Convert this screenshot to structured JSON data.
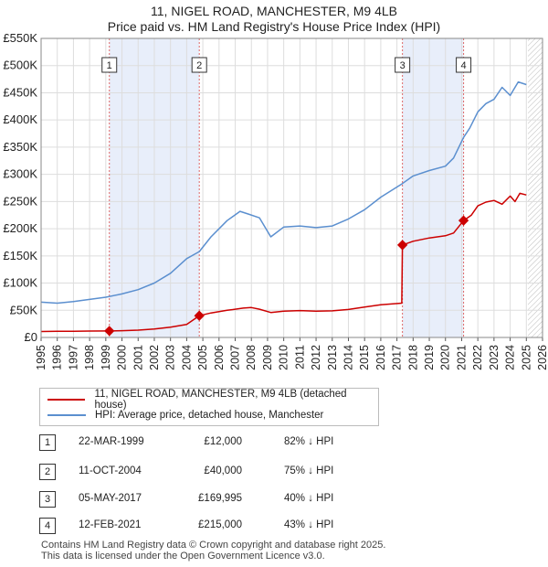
{
  "title": "11, NIGEL ROAD, MANCHESTER, M9 4LB",
  "subtitle": "Price paid vs. HM Land Registry's House Price Index (HPI)",
  "chart_data": {
    "type": "line",
    "x_range": [
      1995,
      2026
    ],
    "ylim": [
      0,
      550000
    ],
    "y_ticks": [
      {
        "value": 0,
        "label": "£0"
      },
      {
        "value": 50000,
        "label": "£50K"
      },
      {
        "value": 100000,
        "label": "£100K"
      },
      {
        "value": 150000,
        "label": "£150K"
      },
      {
        "value": 200000,
        "label": "£200K"
      },
      {
        "value": 250000,
        "label": "£250K"
      },
      {
        "value": 300000,
        "label": "£300K"
      },
      {
        "value": 350000,
        "label": "£350K"
      },
      {
        "value": 400000,
        "label": "£400K"
      },
      {
        "value": 450000,
        "label": "£450K"
      },
      {
        "value": 500000,
        "label": "£500K"
      },
      {
        "value": 550000,
        "label": "£550K"
      }
    ],
    "x_ticks": [
      "1995",
      "1996",
      "1997",
      "1998",
      "1999",
      "2000",
      "2001",
      "2002",
      "2003",
      "2004",
      "2005",
      "2006",
      "2007",
      "2008",
      "2009",
      "2010",
      "2011",
      "2012",
      "2013",
      "2014",
      "2015",
      "2016",
      "2017",
      "2018",
      "2019",
      "2020",
      "2021",
      "2022",
      "2023",
      "2024",
      "2025",
      "2026"
    ],
    "grid": true,
    "forecast_from": 2025.1,
    "shaded_periods": [
      [
        1999.22,
        2004.78
      ],
      [
        2017.34,
        2021.12
      ]
    ],
    "sale_markers": [
      {
        "label": "1",
        "x": 1999.22,
        "y": 12000
      },
      {
        "label": "2",
        "x": 2004.78,
        "y": 40000
      },
      {
        "label": "3",
        "x": 2017.34,
        "y": 169995
      },
      {
        "label": "4",
        "x": 2021.12,
        "y": 215000
      }
    ],
    "series": [
      {
        "name": "11, NIGEL ROAD, MANCHESTER, M9 4LB (detached house)",
        "color": "#cc0000",
        "points": [
          [
            1995.0,
            11000
          ],
          [
            1996.0,
            11200
          ],
          [
            1997.0,
            11500
          ],
          [
            1998.0,
            11800
          ],
          [
            1999.22,
            12000
          ],
          [
            2000.0,
            12500
          ],
          [
            2001.0,
            13500
          ],
          [
            2002.0,
            15500
          ],
          [
            2003.0,
            19000
          ],
          [
            2004.0,
            24000
          ],
          [
            2004.78,
            40000
          ],
          [
            2005.5,
            45000
          ],
          [
            2006.5,
            50000
          ],
          [
            2007.5,
            54000
          ],
          [
            2008.0,
            55000
          ],
          [
            2008.5,
            52000
          ],
          [
            2009.2,
            46000
          ],
          [
            2010.0,
            48500
          ],
          [
            2011.0,
            49500
          ],
          [
            2012.0,
            48500
          ],
          [
            2013.0,
            49000
          ],
          [
            2014.0,
            51500
          ],
          [
            2015.0,
            56000
          ],
          [
            2016.0,
            60000
          ],
          [
            2017.3,
            63000
          ],
          [
            2017.34,
            169995
          ],
          [
            2018.0,
            177000
          ],
          [
            2019.0,
            183000
          ],
          [
            2020.0,
            187000
          ],
          [
            2020.5,
            192000
          ],
          [
            2021.12,
            215000
          ],
          [
            2021.6,
            225000
          ],
          [
            2022.0,
            242000
          ],
          [
            2022.5,
            249000
          ],
          [
            2023.0,
            252000
          ],
          [
            2023.5,
            245000
          ],
          [
            2024.0,
            260000
          ],
          [
            2024.3,
            250000
          ],
          [
            2024.6,
            265000
          ],
          [
            2025.0,
            262000
          ]
        ]
      },
      {
        "name": "HPI: Average price, detached house, Manchester",
        "color": "#5b8fcf",
        "points": [
          [
            1995.0,
            65000
          ],
          [
            1996.0,
            63000
          ],
          [
            1997.0,
            66000
          ],
          [
            1998.0,
            70000
          ],
          [
            1999.0,
            74000
          ],
          [
            2000.0,
            80000
          ],
          [
            2001.0,
            88000
          ],
          [
            2002.0,
            100000
          ],
          [
            2003.0,
            118000
          ],
          [
            2004.0,
            145000
          ],
          [
            2004.78,
            158000
          ],
          [
            2005.5,
            185000
          ],
          [
            2006.5,
            215000
          ],
          [
            2007.3,
            232000
          ],
          [
            2007.8,
            227000
          ],
          [
            2008.5,
            220000
          ],
          [
            2009.2,
            185000
          ],
          [
            2010.0,
            203000
          ],
          [
            2011.0,
            205000
          ],
          [
            2012.0,
            202000
          ],
          [
            2013.0,
            205000
          ],
          [
            2014.0,
            218000
          ],
          [
            2015.0,
            235000
          ],
          [
            2016.0,
            258000
          ],
          [
            2017.34,
            283000
          ],
          [
            2018.0,
            297000
          ],
          [
            2019.0,
            307000
          ],
          [
            2020.0,
            315000
          ],
          [
            2020.5,
            330000
          ],
          [
            2021.12,
            368000
          ],
          [
            2021.5,
            385000
          ],
          [
            2022.0,
            415000
          ],
          [
            2022.5,
            430000
          ],
          [
            2023.0,
            438000
          ],
          [
            2023.5,
            460000
          ],
          [
            2024.0,
            445000
          ],
          [
            2024.5,
            470000
          ],
          [
            2025.0,
            465000
          ]
        ]
      }
    ]
  },
  "legend": [
    {
      "label": "11, NIGEL ROAD, MANCHESTER, M9 4LB (detached house)",
      "color": "#cc0000"
    },
    {
      "label": "HPI: Average price, detached house, Manchester",
      "color": "#5b8fcf"
    }
  ],
  "transactions": [
    {
      "num": "1",
      "date": "22-MAR-1999",
      "price": "£12,000",
      "hpi": "82% ↓ HPI"
    },
    {
      "num": "2",
      "date": "11-OCT-2004",
      "price": "£40,000",
      "hpi": "75% ↓ HPI"
    },
    {
      "num": "3",
      "date": "05-MAY-2017",
      "price": "£169,995",
      "hpi": "40% ↓ HPI"
    },
    {
      "num": "4",
      "date": "12-FEB-2021",
      "price": "£215,000",
      "hpi": "43% ↓ HPI"
    }
  ],
  "footer": {
    "line1": "Contains HM Land Registry data © Crown copyright and database right 2025.",
    "line2": "This data is licensed under the Open Government Licence v3.0."
  }
}
